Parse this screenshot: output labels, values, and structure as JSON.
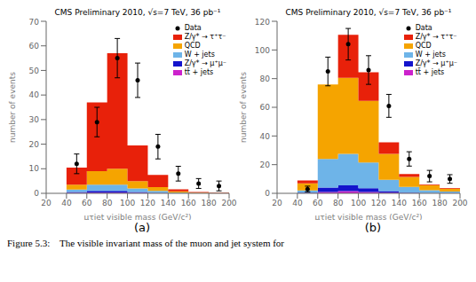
{
  "chart_data": [
    {
      "type": "bar",
      "stacked": true,
      "title": "CMS Preliminary 2010, √s=7 TeV, 36 pb⁻¹",
      "xlabel": "μτjet visible mass (GeV/c²)",
      "ylabel": "number of events",
      "bins": [
        40,
        60,
        80,
        100,
        120,
        140,
        160,
        180,
        200
      ],
      "xlim": [
        20,
        200
      ],
      "xticks": [
        20,
        40,
        60,
        80,
        100,
        120,
        140,
        160,
        180,
        200
      ],
      "ylim": [
        0,
        70
      ],
      "yticks": [
        0,
        10,
        20,
        30,
        40,
        50,
        60,
        70
      ],
      "grid": false,
      "legend": "upper right",
      "annotations": [
        "(a)"
      ],
      "series": [
        {
          "name": "tt̄ + jets",
          "color": "#cc22cc",
          "values": [
            0.2,
            0.3,
            0.3,
            0.2,
            0.1,
            0.0,
            0.0,
            0.0
          ]
        },
        {
          "name": "Z/γ* → μ⁺μ⁻",
          "color": "#1414cc",
          "values": [
            0.3,
            0.7,
            0.7,
            0.3,
            0.1,
            0.0,
            0.0,
            0.0
          ]
        },
        {
          "name": "W + jets",
          "color": "#6eb4e8",
          "values": [
            1.0,
            2.5,
            2.5,
            1.5,
            0.8,
            0.3,
            0.1,
            0.1
          ]
        },
        {
          "name": "QCD",
          "color": "#f5a400",
          "values": [
            2.0,
            5.5,
            6.5,
            3.0,
            1.5,
            0.5,
            0.2,
            0.1
          ]
        },
        {
          "name": "Z/γ* → τ⁺τ⁻",
          "color": "#e8210a",
          "values": [
            7.0,
            28.0,
            47.0,
            14.5,
            5.0,
            0.8,
            0.2,
            0.2
          ]
        },
        {
          "name": "Data",
          "type": "scatter",
          "marker": "circle",
          "color": "#000000",
          "x": [
            50,
            70,
            90,
            110,
            130,
            150,
            170,
            190
          ],
          "values": [
            12,
            29,
            55,
            46,
            19,
            8,
            4,
            3
          ],
          "errors": [
            4,
            6,
            8,
            7,
            5,
            3,
            2,
            2
          ]
        }
      ]
    },
    {
      "type": "bar",
      "stacked": true,
      "title": "CMS Preliminary 2010, √s=7 TeV, 36 pb⁻¹",
      "xlabel": "μτjet visible mass (GeV/c²)",
      "ylabel": "number of events",
      "bins": [
        40,
        60,
        80,
        100,
        120,
        140,
        160,
        180,
        200
      ],
      "xlim": [
        20,
        200
      ],
      "xticks": [
        20,
        40,
        60,
        80,
        100,
        120,
        140,
        160,
        180,
        200
      ],
      "ylim": [
        0,
        120
      ],
      "yticks": [
        0,
        20,
        40,
        60,
        80,
        100,
        120
      ],
      "grid": false,
      "legend": "upper right",
      "annotations": [
        "(b)"
      ],
      "series": [
        {
          "name": "tt̄ + jets",
          "color": "#cc22cc",
          "values": [
            0.2,
            1.0,
            1.5,
            1.0,
            0.5,
            0.2,
            0.1,
            0.1
          ]
        },
        {
          "name": "Z/γ* → μ⁺μ⁻",
          "color": "#1414cc",
          "values": [
            0.3,
            3.0,
            4.0,
            2.5,
            1.0,
            0.3,
            0.1,
            0.1
          ]
        },
        {
          "name": "W + jets",
          "color": "#6eb4e8",
          "values": [
            1.5,
            20.0,
            22.0,
            18.0,
            8.0,
            4.0,
            2.0,
            1.0
          ]
        },
        {
          "name": "QCD",
          "color": "#f5a400",
          "values": [
            5.0,
            52.0,
            53.0,
            43.0,
            18.0,
            7.0,
            3.5,
            2.0
          ]
        },
        {
          "name": "Z/γ* → τ⁺τ⁻",
          "color": "#e8210a",
          "values": [
            2.0,
            0.0,
            30.0,
            20.0,
            8.0,
            2.0,
            0.5,
            0.5
          ]
        },
        {
          "name": "Data",
          "type": "scatter",
          "marker": "circle",
          "color": "#000000",
          "x": [
            50,
            70,
            90,
            110,
            130,
            150,
            170,
            190
          ],
          "values": [
            3,
            85,
            104,
            86,
            61,
            24,
            12,
            10
          ],
          "errors": [
            2,
            10,
            11,
            10,
            8,
            5,
            4,
            3
          ]
        }
      ]
    }
  ],
  "caption": "Figure 5.3:    The visible invariant mass of the muon and jet system for"
}
